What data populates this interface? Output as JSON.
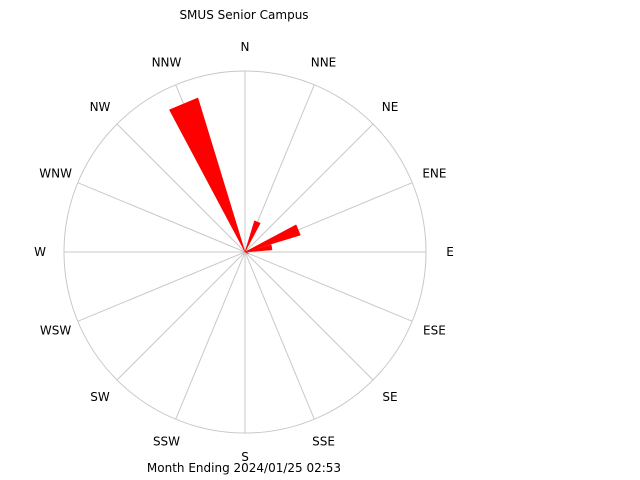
{
  "chart_data": {
    "type": "windrose",
    "title": "SMUS Senior Campus",
    "footer": "Month Ending 2024/01/25 02:53",
    "directions": [
      "N",
      "NNE",
      "NE",
      "ENE",
      "E",
      "ESE",
      "SE",
      "SSE",
      "S",
      "SSW",
      "SW",
      "WSW",
      "W",
      "WNW",
      "NW",
      "NNW"
    ],
    "radial_max": 1.0,
    "grid": true,
    "series_color": "#ff0000",
    "grid_color": "#c8c8c8",
    "petals": [
      {
        "direction": 337.5,
        "value": 0.89
      },
      {
        "direction": 22.5,
        "value": 0.18
      },
      {
        "direction": 67.5,
        "value": 0.32
      },
      {
        "direction": 112.5,
        "value": 0.02
      },
      {
        "direction": 80,
        "value": 0.15
      }
    ]
  }
}
